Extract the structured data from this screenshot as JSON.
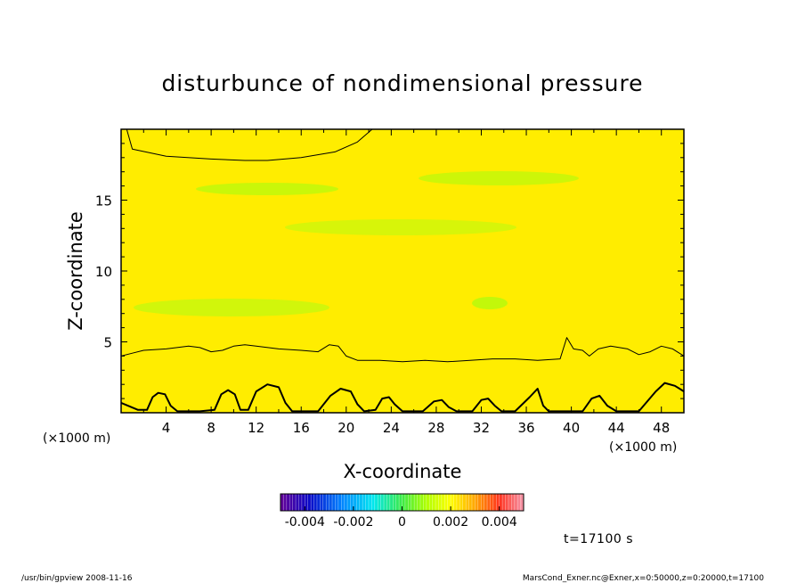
{
  "chart_data": {
    "type": "heatmap",
    "title": "disturbunce of nondimensional pressure",
    "xlabel": "X-coordinate",
    "ylabel": "Z-coordinate",
    "x_unit": "(×1000 m)",
    "y_unit": "(×1000 m)",
    "xlim": [
      0,
      50
    ],
    "ylim": [
      0,
      20
    ],
    "x_ticks": [
      4,
      8,
      12,
      16,
      20,
      24,
      28,
      32,
      36,
      40,
      44,
      48
    ],
    "y_ticks": [
      5,
      10,
      15
    ],
    "colorbar": {
      "range": [
        -0.005,
        0.005
      ],
      "tick_values": [
        -0.004,
        -0.002,
        0,
        0.002,
        0.004
      ],
      "tick_labels": [
        "-0.004",
        "-0.002",
        "0",
        "0.002",
        "0.004"
      ]
    },
    "field_estimate": {
      "note": "",
      "levels_z": [
        0,
        1,
        2,
        4,
        6,
        10,
        14,
        16,
        18,
        20
      ],
      "values": [
        0.0022,
        0.0019,
        0.0016,
        0.0011,
        0.0008,
        0.0006,
        0.0007,
        0.0008,
        0.0009,
        0.001
      ]
    },
    "contours": [
      {
        "level": "upper",
        "points": [
          [
            0.5,
            20
          ],
          [
            1,
            18.6
          ],
          [
            4,
            18.1
          ],
          [
            8,
            17.9
          ],
          [
            11,
            17.8
          ],
          [
            13,
            17.8
          ],
          [
            16,
            18
          ],
          [
            19,
            18.4
          ],
          [
            21,
            19.1
          ],
          [
            22.3,
            20
          ]
        ]
      },
      {
        "level": "middle",
        "points": [
          [
            0,
            4
          ],
          [
            1,
            4.2
          ],
          [
            2,
            4.4
          ],
          [
            4,
            4.5
          ],
          [
            6,
            4.7
          ],
          [
            7,
            4.6
          ],
          [
            8,
            4.3
          ],
          [
            9,
            4.4
          ],
          [
            10,
            4.7
          ],
          [
            11,
            4.8
          ],
          [
            12,
            4.7
          ],
          [
            14,
            4.5
          ],
          [
            16,
            4.4
          ],
          [
            17.5,
            4.3
          ],
          [
            18.5,
            4.8
          ],
          [
            19.3,
            4.7
          ],
          [
            20,
            4.0
          ],
          [
            21,
            3.7
          ],
          [
            23,
            3.7
          ],
          [
            25,
            3.6
          ],
          [
            27,
            3.7
          ],
          [
            29,
            3.6
          ],
          [
            31,
            3.7
          ],
          [
            33,
            3.8
          ],
          [
            35,
            3.8
          ],
          [
            37,
            3.7
          ],
          [
            39,
            3.8
          ],
          [
            39.6,
            5.3
          ],
          [
            40.2,
            4.5
          ],
          [
            41,
            4.4
          ],
          [
            41.6,
            4.0
          ],
          [
            42.4,
            4.5
          ],
          [
            43.5,
            4.7
          ],
          [
            45,
            4.5
          ],
          [
            46,
            4.1
          ],
          [
            47,
            4.3
          ],
          [
            48,
            4.7
          ],
          [
            49,
            4.5
          ],
          [
            50,
            4.0
          ]
        ]
      },
      {
        "level": "lower",
        "points": [
          [
            0,
            0.7
          ],
          [
            1.5,
            0.2
          ],
          [
            2.3,
            0.2
          ],
          [
            2.8,
            1.1
          ],
          [
            3.3,
            1.4
          ],
          [
            3.9,
            1.3
          ],
          [
            4.4,
            0.5
          ],
          [
            5,
            0.1
          ],
          [
            7,
            0.1
          ],
          [
            8.3,
            0.2
          ],
          [
            8.9,
            1.3
          ],
          [
            9.5,
            1.6
          ],
          [
            10.1,
            1.3
          ],
          [
            10.6,
            0.2
          ],
          [
            11.3,
            0.2
          ],
          [
            12,
            1.5
          ],
          [
            13,
            2.0
          ],
          [
            14,
            1.8
          ],
          [
            14.6,
            0.7
          ],
          [
            15.2,
            0.1
          ],
          [
            17.5,
            0.1
          ],
          [
            18.6,
            1.2
          ],
          [
            19.5,
            1.7
          ],
          [
            20.4,
            1.5
          ],
          [
            21,
            0.6
          ],
          [
            21.6,
            0.1
          ],
          [
            22.6,
            0.2
          ],
          [
            23.2,
            1.0
          ],
          [
            23.8,
            1.1
          ],
          [
            24.3,
            0.6
          ],
          [
            25,
            0.1
          ],
          [
            26.8,
            0.1
          ],
          [
            27.8,
            0.8
          ],
          [
            28.5,
            0.9
          ],
          [
            29.1,
            0.4
          ],
          [
            29.8,
            0.1
          ],
          [
            31.2,
            0.1
          ],
          [
            32,
            0.9
          ],
          [
            32.6,
            1.0
          ],
          [
            33.2,
            0.5
          ],
          [
            33.8,
            0.1
          ],
          [
            35,
            0.1
          ],
          [
            36.3,
            1.1
          ],
          [
            37,
            1.7
          ],
          [
            37.5,
            0.5
          ],
          [
            38,
            0.1
          ],
          [
            41,
            0.1
          ],
          [
            41.8,
            1.0
          ],
          [
            42.5,
            1.2
          ],
          [
            43.2,
            0.5
          ],
          [
            44,
            0.1
          ],
          [
            46,
            0.1
          ],
          [
            47.5,
            1.5
          ],
          [
            48.3,
            2.1
          ],
          [
            49.2,
            1.9
          ],
          [
            50,
            1.5
          ]
        ]
      }
    ]
  },
  "annotations": {
    "time_label": "t=17100 s",
    "footer_left": "/usr/bin/gpview  2008-11-16",
    "footer_right": "MarsCond_Exner.nc@Exner,x=0:50000,z=0:20000,t=17100"
  }
}
